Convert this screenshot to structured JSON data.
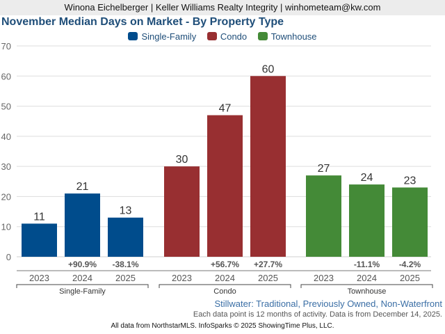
{
  "header": {
    "agent_line": "Winona Eichelberger | Keller Williams Realty Integrity | winhometeam@kw.com"
  },
  "colors": {
    "single_family": "#004c8c",
    "condo": "#982f31",
    "townhouse": "#448a37",
    "title": "#1f4e79",
    "subtitle": "#3a6ea5"
  },
  "chart_data": {
    "type": "bar",
    "title": "November Median Days on Market - By Property Type",
    "xlabel": "",
    "ylabel": "",
    "ylim": [
      0,
      70
    ],
    "yticks": [
      0,
      10,
      20,
      30,
      40,
      50,
      60,
      70
    ],
    "grid": true,
    "legend_position": "top-center",
    "legend": [
      "Single-Family",
      "Condo",
      "Townhouse"
    ],
    "groups": [
      {
        "name": "Single-Family",
        "categories": [
          "2023",
          "2024",
          "2025"
        ],
        "values": [
          11,
          21,
          13
        ],
        "changes": [
          "",
          "+90.9%",
          "-38.1%"
        ]
      },
      {
        "name": "Condo",
        "categories": [
          "2023",
          "2024",
          "2025"
        ],
        "values": [
          30,
          47,
          60
        ],
        "changes": [
          "",
          "+56.7%",
          "+27.7%"
        ]
      },
      {
        "name": "Townhouse",
        "categories": [
          "2023",
          "2024",
          "2025"
        ],
        "values": [
          27,
          24,
          23
        ],
        "changes": [
          "",
          "-11.1%",
          "-4.2%"
        ]
      }
    ]
  },
  "subtitle": "Stillwater: Traditional, Previously Owned, Non-Waterfront",
  "note": "Each data point is 12 months of activity. Data is from December 14, 2025.",
  "footer": "All data from NorthstarMLS. InfoSparks © 2025 ShowingTime Plus, LLC."
}
